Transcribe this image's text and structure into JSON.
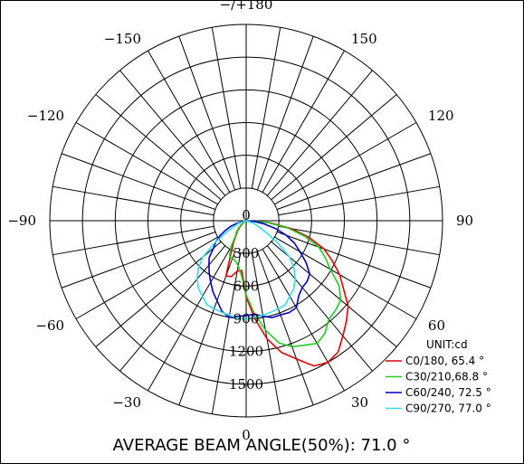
{
  "chart_data": {
    "type": "polar",
    "unit_label": "UNIT:cd",
    "footer": "AVERAGE BEAM ANGLE(50%): 71.0 °",
    "radial_ticks": [
      "300",
      "600",
      "900",
      "1200",
      "1500"
    ],
    "radial_max": 1800,
    "angle_labels": [
      {
        "angle": 0,
        "text": "0"
      },
      {
        "angle": 30,
        "text": "30"
      },
      {
        "angle": -30,
        "text": "−30"
      },
      {
        "angle": 60,
        "text": "60"
      },
      {
        "angle": -60,
        "text": "−60"
      },
      {
        "angle": 90,
        "text": "90"
      },
      {
        "angle": -90,
        "text": "−90"
      },
      {
        "angle": 120,
        "text": "120"
      },
      {
        "angle": -120,
        "text": "−120"
      },
      {
        "angle": 150,
        "text": "150"
      },
      {
        "angle": -150,
        "text": "−150"
      },
      {
        "angle": 180,
        "text": "−/+180"
      }
    ],
    "center_label": "0",
    "series": [
      {
        "name": "C0/180, 65.4 °",
        "color": "#e00000",
        "points": [
          [
            -180,
            0
          ],
          [
            -90,
            0
          ],
          [
            -60,
            15
          ],
          [
            -50,
            45
          ],
          [
            -45,
            80
          ],
          [
            -40,
            120
          ],
          [
            -35,
            160
          ],
          [
            -30,
            230
          ],
          [
            -25,
            330
          ],
          [
            -20,
            540
          ],
          [
            -15,
            530
          ],
          [
            -10,
            470
          ],
          [
            -5,
            460
          ],
          [
            0,
            700
          ],
          [
            5,
            900
          ],
          [
            10,
            1100
          ],
          [
            15,
            1250
          ],
          [
            20,
            1350
          ],
          [
            25,
            1470
          ],
          [
            30,
            1500
          ],
          [
            35,
            1470
          ],
          [
            40,
            1380
          ],
          [
            45,
            1300
          ],
          [
            50,
            1220
          ],
          [
            55,
            1090
          ],
          [
            60,
            990
          ],
          [
            65,
            870
          ],
          [
            70,
            760
          ],
          [
            75,
            600
          ],
          [
            80,
            420
          ],
          [
            85,
            220
          ],
          [
            90,
            0
          ],
          [
            180,
            0
          ]
        ]
      },
      {
        "name": "C30/210,68.8 °",
        "color": "#22cc22",
        "points": [
          [
            -180,
            0
          ],
          [
            -90,
            0
          ],
          [
            -60,
            20
          ],
          [
            -50,
            60
          ],
          [
            -45,
            100
          ],
          [
            -40,
            140
          ],
          [
            -35,
            170
          ],
          [
            -30,
            280
          ],
          [
            -25,
            360
          ],
          [
            -20,
            370
          ],
          [
            -15,
            380
          ],
          [
            -10,
            420
          ],
          [
            -5,
            500
          ],
          [
            0,
            680
          ],
          [
            5,
            850
          ],
          [
            10,
            1020
          ],
          [
            15,
            1160
          ],
          [
            20,
            1230
          ],
          [
            25,
            1260
          ],
          [
            30,
            1300
          ],
          [
            35,
            1260
          ],
          [
            40,
            1180
          ],
          [
            45,
            1160
          ],
          [
            50,
            1130
          ],
          [
            55,
            1040
          ],
          [
            60,
            890
          ],
          [
            65,
            800
          ],
          [
            70,
            710
          ],
          [
            75,
            560
          ],
          [
            80,
            390
          ],
          [
            85,
            200
          ],
          [
            90,
            0
          ],
          [
            180,
            0
          ]
        ]
      },
      {
        "name": "C60/240, 72.5 °",
        "color": "#0000cc",
        "points": [
          [
            -180,
            0
          ],
          [
            -90,
            0
          ],
          [
            -75,
            80
          ],
          [
            -70,
            150
          ],
          [
            -65,
            210
          ],
          [
            -60,
            280
          ],
          [
            -55,
            340
          ],
          [
            -50,
            390
          ],
          [
            -45,
            480
          ],
          [
            -40,
            530
          ],
          [
            -35,
            590
          ],
          [
            -30,
            650
          ],
          [
            -25,
            720
          ],
          [
            -20,
            780
          ],
          [
            -15,
            860
          ],
          [
            -10,
            900
          ],
          [
            -5,
            880
          ],
          [
            0,
            870
          ],
          [
            5,
            860
          ],
          [
            10,
            890
          ],
          [
            15,
            920
          ],
          [
            20,
            920
          ],
          [
            25,
            930
          ],
          [
            30,
            920
          ],
          [
            35,
            840
          ],
          [
            40,
            800
          ],
          [
            45,
            790
          ],
          [
            50,
            760
          ],
          [
            55,
            670
          ],
          [
            60,
            570
          ],
          [
            65,
            490
          ],
          [
            70,
            390
          ],
          [
            75,
            280
          ],
          [
            80,
            160
          ],
          [
            85,
            70
          ],
          [
            90,
            0
          ],
          [
            180,
            0
          ]
        ]
      },
      {
        "name": "C90/270, 77.0 °",
        "color": "#33ddee",
        "points": [
          [
            -180,
            0
          ],
          [
            -90,
            0
          ],
          [
            -70,
            80
          ],
          [
            -60,
            200
          ],
          [
            -55,
            350
          ],
          [
            -50,
            520
          ],
          [
            -45,
            620
          ],
          [
            -40,
            700
          ],
          [
            -35,
            760
          ],
          [
            -30,
            800
          ],
          [
            -25,
            850
          ],
          [
            -20,
            860
          ],
          [
            -15,
            870
          ],
          [
            -10,
            880
          ],
          [
            -5,
            900
          ],
          [
            0,
            900
          ],
          [
            5,
            890
          ],
          [
            10,
            880
          ],
          [
            15,
            870
          ],
          [
            20,
            860
          ],
          [
            25,
            850
          ],
          [
            30,
            800
          ],
          [
            35,
            760
          ],
          [
            40,
            700
          ],
          [
            45,
            620
          ],
          [
            50,
            520
          ],
          [
            55,
            350
          ],
          [
            60,
            200
          ],
          [
            70,
            80
          ],
          [
            90,
            0
          ],
          [
            180,
            0
          ]
        ]
      }
    ]
  }
}
